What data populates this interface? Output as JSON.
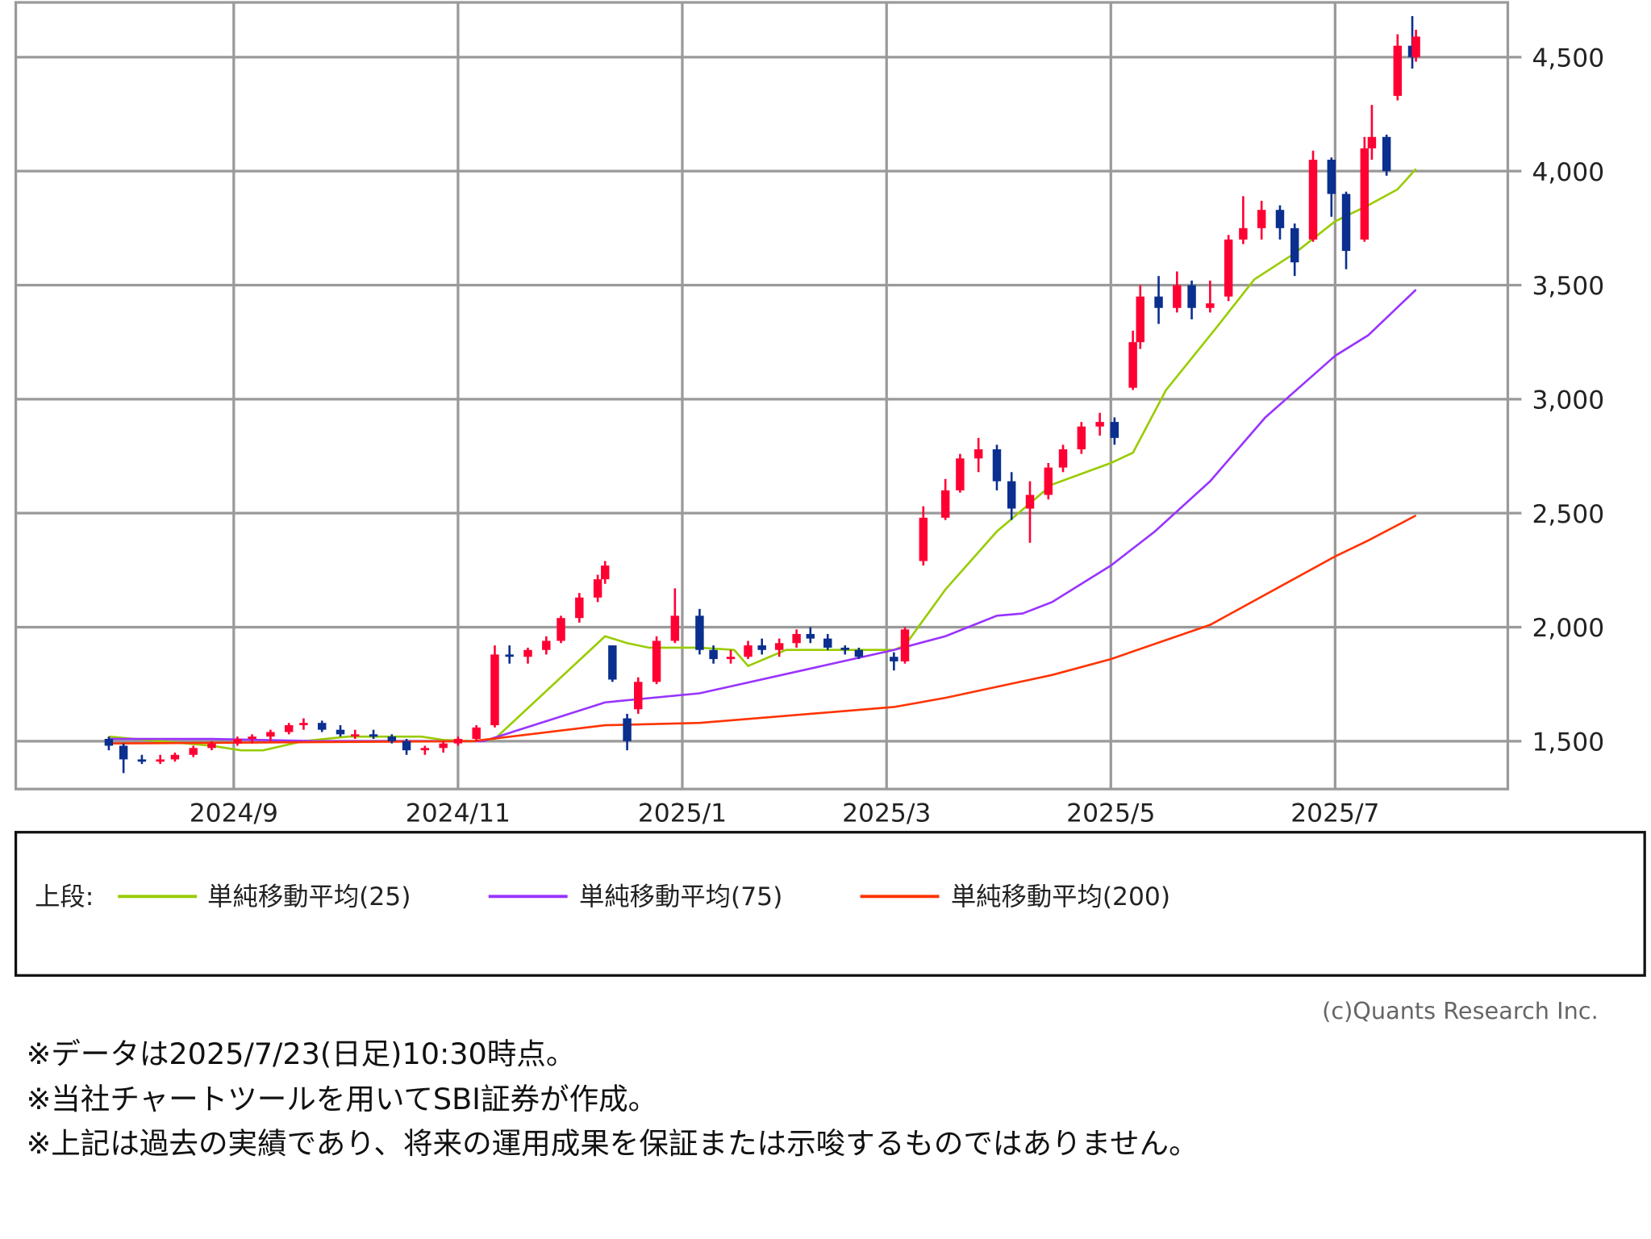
{
  "chart_data": {
    "type": "candlestick",
    "ylim": [
      1290,
      4740
    ],
    "grid": true,
    "y_ticks": [
      {
        "value": 1500,
        "label": "1,500"
      },
      {
        "value": 2000,
        "label": "2,000"
      },
      {
        "value": 2500,
        "label": "2,500"
      },
      {
        "value": 3000,
        "label": "3,000"
      },
      {
        "value": 3500,
        "label": "3,500"
      },
      {
        "value": 4000,
        "label": "4,000"
      },
      {
        "value": 4500,
        "label": "4,500"
      }
    ],
    "x_ticks": [
      {
        "date": "2024-09-01",
        "label": "2024/9"
      },
      {
        "date": "2024-11-01",
        "label": "2024/11"
      },
      {
        "date": "2025-01-01",
        "label": "2025/1"
      },
      {
        "date": "2025-03-01",
        "label": "2025/3"
      },
      {
        "date": "2025-05-01",
        "label": "2025/5"
      },
      {
        "date": "2025-07-01",
        "label": "2025/7"
      }
    ],
    "colors": {
      "up": "#ff0033",
      "down": "#0a2f8f",
      "grid": "#9a9a9a"
    },
    "candles_ohlc": [
      [
        "2024-07-29",
        1510,
        1520,
        1460,
        1480
      ],
      [
        "2024-08-02",
        1480,
        1490,
        1360,
        1420
      ],
      [
        "2024-08-07",
        1420,
        1440,
        1400,
        1410
      ],
      [
        "2024-08-12",
        1410,
        1440,
        1400,
        1420
      ],
      [
        "2024-08-16",
        1420,
        1450,
        1410,
        1440
      ],
      [
        "2024-08-21",
        1440,
        1480,
        1430,
        1470
      ],
      [
        "2024-08-26",
        1470,
        1500,
        1460,
        1490
      ],
      [
        "2024-09-02",
        1490,
        1520,
        1480,
        1510
      ],
      [
        "2024-09-06",
        1510,
        1530,
        1490,
        1520
      ],
      [
        "2024-09-11",
        1520,
        1550,
        1500,
        1540
      ],
      [
        "2024-09-16",
        1540,
        1580,
        1530,
        1570
      ],
      [
        "2024-09-20",
        1570,
        1600,
        1550,
        1580
      ],
      [
        "2024-09-25",
        1580,
        1590,
        1540,
        1550
      ],
      [
        "2024-09-30",
        1550,
        1570,
        1520,
        1530
      ],
      [
        "2024-10-04",
        1530,
        1550,
        1510,
        1530
      ],
      [
        "2024-10-09",
        1530,
        1550,
        1510,
        1520
      ],
      [
        "2024-10-14",
        1520,
        1530,
        1490,
        1500
      ],
      [
        "2024-10-18",
        1500,
        1510,
        1440,
        1460
      ],
      [
        "2024-10-23",
        1460,
        1480,
        1440,
        1470
      ],
      [
        "2024-10-28",
        1470,
        1500,
        1450,
        1490
      ],
      [
        "2024-11-01",
        1490,
        1520,
        1480,
        1510
      ],
      [
        "2024-11-06",
        1510,
        1570,
        1500,
        1560
      ],
      [
        "2024-11-11",
        1570,
        1920,
        1560,
        1880
      ],
      [
        "2024-11-15",
        1880,
        1920,
        1840,
        1870
      ],
      [
        "2024-11-20",
        1870,
        1910,
        1840,
        1900
      ],
      [
        "2024-11-25",
        1900,
        1960,
        1880,
        1940
      ],
      [
        "2024-11-29",
        1940,
        2050,
        1930,
        2040
      ],
      [
        "2024-12-04",
        2040,
        2150,
        2020,
        2130
      ],
      [
        "2024-12-09",
        2130,
        2230,
        2110,
        2210
      ],
      [
        "2024-12-11",
        2210,
        2290,
        2190,
        2270
      ],
      [
        "2024-12-13",
        1920,
        1920,
        1760,
        1770
      ],
      [
        "2024-12-17",
        1600,
        1620,
        1460,
        1500
      ],
      [
        "2024-12-20",
        1640,
        1780,
        1620,
        1760
      ],
      [
        "2024-12-25",
        1760,
        1960,
        1750,
        1940
      ],
      [
        "2024-12-30",
        1940,
        2170,
        1930,
        2050
      ],
      [
        "2025-01-06",
        2050,
        2080,
        1880,
        1900
      ],
      [
        "2025-01-10",
        1900,
        1920,
        1840,
        1860
      ],
      [
        "2025-01-15",
        1860,
        1900,
        1840,
        1870
      ],
      [
        "2025-01-20",
        1870,
        1940,
        1860,
        1920
      ],
      [
        "2025-01-24",
        1920,
        1950,
        1880,
        1900
      ],
      [
        "2025-01-29",
        1900,
        1950,
        1870,
        1930
      ],
      [
        "2025-02-03",
        1930,
        1990,
        1910,
        1970
      ],
      [
        "2025-02-07",
        1970,
        2000,
        1930,
        1950
      ],
      [
        "2025-02-12",
        1950,
        1970,
        1900,
        1910
      ],
      [
        "2025-02-17",
        1910,
        1920,
        1880,
        1900
      ],
      [
        "2025-02-21",
        1900,
        1910,
        1860,
        1870
      ],
      [
        "2025-03-03",
        1870,
        1890,
        1810,
        1850
      ],
      [
        "2025-03-06",
        1850,
        2000,
        1840,
        1990
      ],
      [
        "2025-03-11",
        2290,
        2530,
        2270,
        2480
      ],
      [
        "2025-03-17",
        2480,
        2650,
        2470,
        2600
      ],
      [
        "2025-03-21",
        2600,
        2760,
        2590,
        2740
      ],
      [
        "2025-03-26",
        2740,
        2830,
        2680,
        2780
      ],
      [
        "2025-03-31",
        2780,
        2800,
        2600,
        2640
      ],
      [
        "2025-04-04",
        2640,
        2680,
        2470,
        2520
      ],
      [
        "2025-04-09",
        2520,
        2640,
        2370,
        2580
      ],
      [
        "2025-04-14",
        2580,
        2720,
        2560,
        2700
      ],
      [
        "2025-04-18",
        2700,
        2800,
        2680,
        2780
      ],
      [
        "2025-04-23",
        2780,
        2900,
        2760,
        2880
      ],
      [
        "2025-04-28",
        2880,
        2940,
        2840,
        2900
      ],
      [
        "2025-05-02",
        2900,
        2920,
        2800,
        2830
      ],
      [
        "2025-05-07",
        3050,
        3300,
        3040,
        3250
      ],
      [
        "2025-05-09",
        3250,
        3500,
        3220,
        3450
      ],
      [
        "2025-05-14",
        3450,
        3540,
        3330,
        3400
      ],
      [
        "2025-05-19",
        3400,
        3560,
        3380,
        3500
      ],
      [
        "2025-05-23",
        3500,
        3520,
        3350,
        3400
      ],
      [
        "2025-05-28",
        3400,
        3520,
        3380,
        3420
      ],
      [
        "2025-06-02",
        3450,
        3720,
        3430,
        3700
      ],
      [
        "2025-06-06",
        3700,
        3890,
        3680,
        3750
      ],
      [
        "2025-06-11",
        3750,
        3870,
        3700,
        3830
      ],
      [
        "2025-06-16",
        3830,
        3850,
        3700,
        3750
      ],
      [
        "2025-06-20",
        3750,
        3770,
        3540,
        3600
      ],
      [
        "2025-06-25",
        3700,
        4090,
        3690,
        4050
      ],
      [
        "2025-06-30",
        4050,
        4060,
        3800,
        3900
      ],
      [
        "2025-07-04",
        3900,
        3910,
        3570,
        3650
      ],
      [
        "2025-07-09",
        3700,
        4150,
        3690,
        4100
      ],
      [
        "2025-07-11",
        4100,
        4290,
        4050,
        4150
      ],
      [
        "2025-07-15",
        4150,
        4160,
        3980,
        4000
      ],
      [
        "2025-07-18",
        4330,
        4600,
        4310,
        4550
      ],
      [
        "2025-07-22",
        4550,
        4680,
        4450,
        4500
      ],
      [
        "2025-07-23",
        4500,
        4620,
        4480,
        4590
      ]
    ],
    "series": [
      {
        "name": "単純移動平均(25)",
        "color": "#99cc00",
        "points": [
          [
            "2024-07-29",
            1520
          ],
          [
            "2024-08-26",
            1480
          ],
          [
            "2024-09-03",
            1460
          ],
          [
            "2024-09-09",
            1460
          ],
          [
            "2024-09-20",
            1500
          ],
          [
            "2024-10-02",
            1520
          ],
          [
            "2024-10-22",
            1520
          ],
          [
            "2024-10-28",
            1505
          ],
          [
            "2024-11-05",
            1500
          ],
          [
            "2024-11-11",
            1510
          ],
          [
            "2024-12-11",
            1960
          ],
          [
            "2024-12-17",
            1930
          ],
          [
            "2024-12-23",
            1910
          ],
          [
            "2025-01-06",
            1910
          ],
          [
            "2025-01-16",
            1900
          ],
          [
            "2025-01-20",
            1830
          ],
          [
            "2025-01-31",
            1900
          ],
          [
            "2025-03-03",
            1900
          ],
          [
            "2025-03-06",
            1920
          ],
          [
            "2025-03-17",
            2165
          ],
          [
            "2025-03-31",
            2420
          ],
          [
            "2025-04-15",
            2625
          ],
          [
            "2025-05-01",
            2720
          ],
          [
            "2025-05-07",
            2765
          ],
          [
            "2025-05-16",
            3040
          ],
          [
            "2025-05-30",
            3320
          ],
          [
            "2025-06-09",
            3525
          ],
          [
            "2025-06-20",
            3640
          ],
          [
            "2025-07-01",
            3780
          ],
          [
            "2025-07-10",
            3850
          ],
          [
            "2025-07-18",
            3920
          ],
          [
            "2025-07-23",
            4010
          ]
        ]
      },
      {
        "name": "単純移動平均(75)",
        "color": "#9933ff",
        "points": [
          [
            "2024-07-29",
            1510
          ],
          [
            "2024-08-26",
            1510
          ],
          [
            "2024-09-23",
            1500
          ],
          [
            "2024-11-05",
            1500
          ],
          [
            "2024-11-08",
            1500
          ],
          [
            "2024-12-11",
            1670
          ],
          [
            "2025-01-06",
            1710
          ],
          [
            "2025-03-03",
            1900
          ],
          [
            "2025-03-17",
            1960
          ],
          [
            "2025-03-31",
            2050
          ],
          [
            "2025-04-07",
            2060
          ],
          [
            "2025-04-15",
            2110
          ],
          [
            "2025-05-01",
            2270
          ],
          [
            "2025-05-13",
            2420
          ],
          [
            "2025-05-28",
            2640
          ],
          [
            "2025-06-12",
            2920
          ],
          [
            "2025-07-01",
            3190
          ],
          [
            "2025-07-10",
            3280
          ],
          [
            "2025-07-23",
            3480
          ]
        ]
      },
      {
        "name": "単純移動平均(200)",
        "color": "#ff3300",
        "points": [
          [
            "2024-07-29",
            1490
          ],
          [
            "2024-11-05",
            1500
          ],
          [
            "2024-12-11",
            1570
          ],
          [
            "2025-01-06",
            1580
          ],
          [
            "2025-03-03",
            1650
          ],
          [
            "2025-03-17",
            1690
          ],
          [
            "2025-04-15",
            1790
          ],
          [
            "2025-05-01",
            1860
          ],
          [
            "2025-05-28",
            2010
          ],
          [
            "2025-07-01",
            2310
          ],
          [
            "2025-07-10",
            2380
          ],
          [
            "2025-07-23",
            2490
          ]
        ]
      }
    ]
  },
  "legend": {
    "prefix": "上段:",
    "items": [
      {
        "label": "単純移動平均(25)",
        "color": "#99cc00"
      },
      {
        "label": "単純移動平均(75)",
        "color": "#9933ff"
      },
      {
        "label": "単純移動平均(200)",
        "color": "#ff3300"
      }
    ]
  },
  "copyright": "(c)Quants Research Inc.",
  "notes": [
    "※データは2025/7/23(日足)10:30時点。",
    "※当社チャートツールを用いてSBI証券が作成。",
    "※上記は過去の実績であり、将来の運用成果を保証または示唆するものではありません。"
  ]
}
